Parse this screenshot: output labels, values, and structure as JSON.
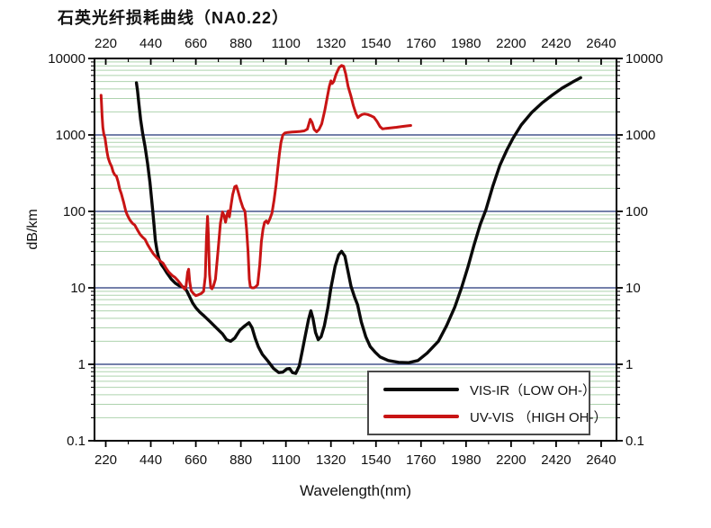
{
  "chart_data": {
    "type": "line",
    "title": "石英光纤损耗曲线（NA0.22）",
    "xlabel": "Wavelength(nm)",
    "ylabel": "dB/km",
    "grid": {
      "major_color": "#46568e",
      "minor_color": "#aed3ae",
      "vertical_gridlines": false
    },
    "axis_color": "#000000",
    "legend_position": "bottom-right",
    "x_axis": {
      "min": 165,
      "max": 2715,
      "scale": "linear",
      "ticks": [
        220,
        440,
        660,
        880,
        1100,
        1320,
        1540,
        1760,
        1980,
        2200,
        2420,
        2640
      ],
      "mirrored_top": true
    },
    "y_axis": {
      "min": 0.1,
      "max": 10000,
      "scale": "log",
      "ticks": [
        0.1,
        1,
        10,
        100,
        1000,
        10000
      ],
      "tick_labels": [
        "0.1",
        "1",
        "10",
        "100",
        "1000",
        "10000"
      ],
      "mirrored_right": true
    },
    "series": [
      {
        "name": "VIS-IR（LOW OH-）",
        "color": "#0a0a0a",
        "width": 3.4,
        "points": [
          [
            370,
            4800
          ],
          [
            375,
            3800
          ],
          [
            382,
            2500
          ],
          [
            390,
            1600
          ],
          [
            400,
            1050
          ],
          [
            412,
            700
          ],
          [
            424,
            430
          ],
          [
            436,
            240
          ],
          [
            449,
            105
          ],
          [
            456,
            65
          ],
          [
            462,
            42
          ],
          [
            470,
            31
          ],
          [
            480,
            24
          ],
          [
            492,
            20
          ],
          [
            505,
            18
          ],
          [
            520,
            15.5
          ],
          [
            540,
            13
          ],
          [
            560,
            11.5
          ],
          [
            580,
            10.6
          ],
          [
            600,
            10.2
          ],
          [
            615,
            9.2
          ],
          [
            630,
            7.6
          ],
          [
            645,
            6.3
          ],
          [
            660,
            5.5
          ],
          [
            680,
            4.8
          ],
          [
            700,
            4.3
          ],
          [
            730,
            3.6
          ],
          [
            760,
            3.0
          ],
          [
            790,
            2.5
          ],
          [
            810,
            2.1
          ],
          [
            830,
            2.0
          ],
          [
            850,
            2.2
          ],
          [
            875,
            2.8
          ],
          [
            900,
            3.2
          ],
          [
            920,
            3.5
          ],
          [
            935,
            3.0
          ],
          [
            950,
            2.2
          ],
          [
            965,
            1.7
          ],
          [
            985,
            1.35
          ],
          [
            1010,
            1.12
          ],
          [
            1040,
            0.88
          ],
          [
            1065,
            0.78
          ],
          [
            1085,
            0.79
          ],
          [
            1105,
            0.87
          ],
          [
            1118,
            0.88
          ],
          [
            1132,
            0.78
          ],
          [
            1148,
            0.76
          ],
          [
            1165,
            0.95
          ],
          [
            1180,
            1.5
          ],
          [
            1195,
            2.4
          ],
          [
            1210,
            3.8
          ],
          [
            1222,
            5.0
          ],
          [
            1232,
            4.0
          ],
          [
            1245,
            2.6
          ],
          [
            1258,
            2.1
          ],
          [
            1272,
            2.3
          ],
          [
            1288,
            3.2
          ],
          [
            1305,
            5.5
          ],
          [
            1320,
            10
          ],
          [
            1340,
            19
          ],
          [
            1358,
            27
          ],
          [
            1372,
            30
          ],
          [
            1388,
            26
          ],
          [
            1402,
            17
          ],
          [
            1418,
            10.5
          ],
          [
            1435,
            7.6
          ],
          [
            1450,
            6.0
          ],
          [
            1468,
            3.6
          ],
          [
            1490,
            2.3
          ],
          [
            1512,
            1.7
          ],
          [
            1535,
            1.45
          ],
          [
            1560,
            1.25
          ],
          [
            1600,
            1.12
          ],
          [
            1650,
            1.06
          ],
          [
            1700,
            1.05
          ],
          [
            1745,
            1.12
          ],
          [
            1790,
            1.4
          ],
          [
            1845,
            2.0
          ],
          [
            1885,
            3.2
          ],
          [
            1925,
            5.6
          ],
          [
            1958,
            10
          ],
          [
            1990,
            19
          ],
          [
            2020,
            37
          ],
          [
            2050,
            68
          ],
          [
            2077,
            105
          ],
          [
            2110,
            210
          ],
          [
            2145,
            400
          ],
          [
            2180,
            640
          ],
          [
            2209,
            900
          ],
          [
            2250,
            1350
          ],
          [
            2300,
            1950
          ],
          [
            2350,
            2600
          ],
          [
            2400,
            3300
          ],
          [
            2450,
            4100
          ],
          [
            2500,
            4900
          ],
          [
            2540,
            5600
          ]
        ]
      },
      {
        "name": "UV-VIS （HIGH OH-）",
        "color": "#c81414",
        "width": 3.0,
        "points": [
          [
            197,
            3300
          ],
          [
            199,
            2700
          ],
          [
            202,
            1800
          ],
          [
            206,
            1250
          ],
          [
            211,
            1000
          ],
          [
            216,
            930
          ],
          [
            220,
            780
          ],
          [
            226,
            600
          ],
          [
            232,
            500
          ],
          [
            240,
            430
          ],
          [
            248,
            390
          ],
          [
            256,
            330
          ],
          [
            264,
            300
          ],
          [
            272,
            290
          ],
          [
            280,
            245
          ],
          [
            288,
            195
          ],
          [
            296,
            170
          ],
          [
            308,
            130
          ],
          [
            318,
            100
          ],
          [
            326,
            89
          ],
          [
            338,
            77
          ],
          [
            350,
            70
          ],
          [
            362,
            66
          ],
          [
            375,
            57
          ],
          [
            388,
            50
          ],
          [
            400,
            46
          ],
          [
            412,
            43
          ],
          [
            424,
            37
          ],
          [
            438,
            32
          ],
          [
            452,
            28
          ],
          [
            468,
            25
          ],
          [
            485,
            22.5
          ],
          [
            500,
            21
          ],
          [
            515,
            18
          ],
          [
            528,
            16
          ],
          [
            545,
            14.5
          ],
          [
            558,
            13.7
          ],
          [
            572,
            12.5
          ],
          [
            585,
            11.3
          ],
          [
            598,
            10.1
          ],
          [
            606,
            9.6
          ],
          [
            612,
            10.5
          ],
          [
            620,
            16
          ],
          [
            625,
            17.5
          ],
          [
            630,
            12
          ],
          [
            637,
            9.2
          ],
          [
            648,
            8.4
          ],
          [
            660,
            7.9
          ],
          [
            672,
            8.1
          ],
          [
            686,
            8.4
          ],
          [
            698,
            9.0
          ],
          [
            706,
            14
          ],
          [
            712,
            45
          ],
          [
            717,
            86
          ],
          [
            721,
            50
          ],
          [
            727,
            15
          ],
          [
            733,
            10
          ],
          [
            739,
            9.7
          ],
          [
            746,
            10.5
          ],
          [
            756,
            13
          ],
          [
            768,
            30
          ],
          [
            780,
            70
          ],
          [
            790,
            98
          ],
          [
            798,
            88
          ],
          [
            805,
            72
          ],
          [
            812,
            90
          ],
          [
            818,
            101
          ],
          [
            824,
            85
          ],
          [
            832,
            120
          ],
          [
            840,
            165
          ],
          [
            850,
            210
          ],
          [
            858,
            215
          ],
          [
            866,
            185
          ],
          [
            878,
            140
          ],
          [
            890,
            112
          ],
          [
            900,
            100
          ],
          [
            908,
            58
          ],
          [
            915,
            30
          ],
          [
            921,
            13
          ],
          [
            926,
            10.4
          ],
          [
            934,
            10
          ],
          [
            944,
            10
          ],
          [
            952,
            10.3
          ],
          [
            962,
            11
          ],
          [
            972,
            20
          ],
          [
            980,
            40
          ],
          [
            988,
            58
          ],
          [
            996,
            72
          ],
          [
            1004,
            75
          ],
          [
            1012,
            70
          ],
          [
            1022,
            80
          ],
          [
            1032,
            95
          ],
          [
            1042,
            140
          ],
          [
            1052,
            220
          ],
          [
            1060,
            360
          ],
          [
            1068,
            560
          ],
          [
            1076,
            800
          ],
          [
            1085,
            1000
          ],
          [
            1095,
            1060
          ],
          [
            1110,
            1080
          ],
          [
            1130,
            1090
          ],
          [
            1150,
            1100
          ],
          [
            1170,
            1110
          ],
          [
            1190,
            1130
          ],
          [
            1205,
            1190
          ],
          [
            1219,
            1600
          ],
          [
            1228,
            1450
          ],
          [
            1238,
            1180
          ],
          [
            1250,
            1100
          ],
          [
            1262,
            1180
          ],
          [
            1275,
            1400
          ],
          [
            1290,
            2100
          ],
          [
            1302,
            3100
          ],
          [
            1312,
            4300
          ],
          [
            1320,
            5100
          ],
          [
            1326,
            4700
          ],
          [
            1334,
            5000
          ],
          [
            1345,
            6200
          ],
          [
            1360,
            7600
          ],
          [
            1372,
            8100
          ],
          [
            1382,
            7900
          ],
          [
            1392,
            6300
          ],
          [
            1404,
            4300
          ],
          [
            1418,
            3200
          ],
          [
            1430,
            2400
          ],
          [
            1442,
            1900
          ],
          [
            1452,
            1680
          ],
          [
            1462,
            1780
          ],
          [
            1472,
            1850
          ],
          [
            1484,
            1880
          ],
          [
            1500,
            1850
          ],
          [
            1515,
            1780
          ],
          [
            1530,
            1700
          ],
          [
            1545,
            1500
          ],
          [
            1560,
            1280
          ],
          [
            1572,
            1200
          ],
          [
            1590,
            1220
          ],
          [
            1615,
            1240
          ],
          [
            1640,
            1260
          ],
          [
            1668,
            1290
          ],
          [
            1690,
            1310
          ],
          [
            1710,
            1330
          ]
        ]
      }
    ]
  },
  "legend": {
    "items": [
      {
        "label": "VIS-IR（LOW OH-）"
      },
      {
        "label": "UV-VIS （HIGH OH-）"
      }
    ],
    "border_color": "#4a4a4a"
  }
}
